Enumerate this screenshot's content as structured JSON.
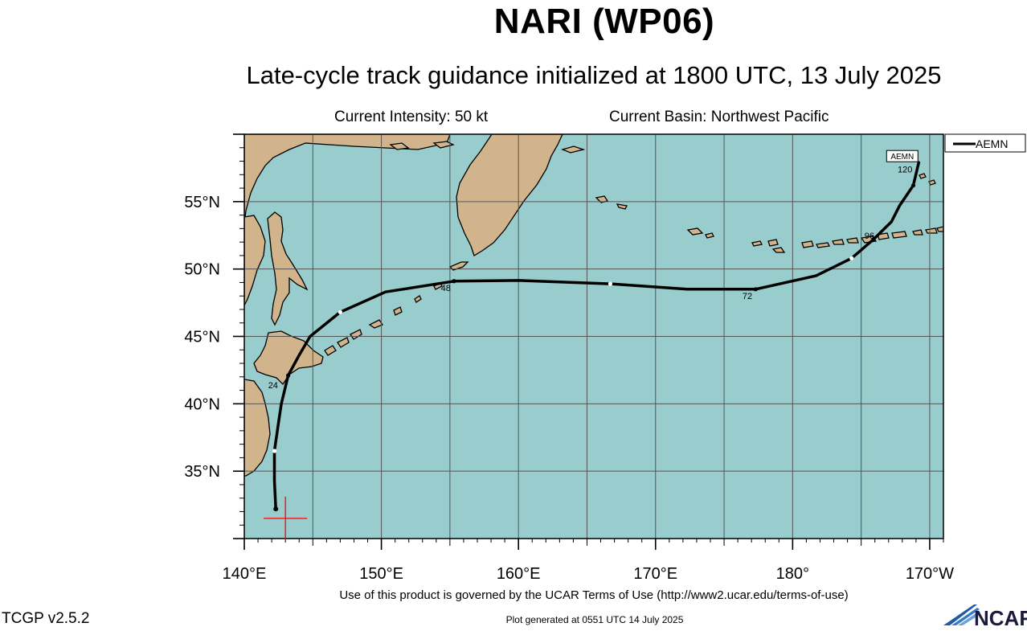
{
  "title": "NARI (WP06)",
  "subtitle": "Late-cycle track guidance initialized at 1800 UTC, 13 July 2025",
  "current_intensity": "Current Intensity: 50 kt",
  "current_basin": "Current Basin: Northwest Pacific",
  "terms": "Use of this product is governed by the UCAR Terms of Use (http://www2.ucar.edu/terms-of-use)",
  "generated": "Plot generated at 0551 UTC   14 July 2025",
  "version": "TCGP v2.5.2",
  "logo_text": "NCAR",
  "colors": {
    "ocean": "#99cccc",
    "land": "#d2b48c",
    "grid": "#555555",
    "track": "#000000",
    "marker": "#ff0000"
  },
  "chart_data": {
    "type": "map",
    "lon_range": [
      140,
      191
    ],
    "lat_range": [
      30,
      60
    ],
    "lon_ticks": [
      {
        "value": 140,
        "label": "140°E"
      },
      {
        "value": 150,
        "label": "150°E"
      },
      {
        "value": 160,
        "label": "160°E"
      },
      {
        "value": 170,
        "label": "170°E"
      },
      {
        "value": 180,
        "label": "180°"
      },
      {
        "value": 190,
        "label": "170°W"
      }
    ],
    "lat_ticks": [
      {
        "value": 35,
        "label": "35°N"
      },
      {
        "value": 40,
        "label": "40°N"
      },
      {
        "value": 45,
        "label": "45°N"
      },
      {
        "value": 50,
        "label": "50°N"
      },
      {
        "value": 55,
        "label": "55°N"
      }
    ],
    "grid": true,
    "legend": {
      "position": "top-right",
      "entries": [
        "AEMN"
      ]
    },
    "initial_position": {
      "lon": 143.0,
      "lat": 31.5
    },
    "series": [
      {
        "name": "AEMN",
        "track": [
          {
            "lon": 142.3,
            "lat": 32.2
          },
          {
            "lon": 142.2,
            "lat": 34.3
          },
          {
            "lon": 142.2,
            "lat": 36.5
          },
          {
            "lon": 142.5,
            "lat": 38.6
          },
          {
            "lon": 142.7,
            "lat": 40.0
          },
          {
            "lon": 143.2,
            "lat": 42.1
          },
          {
            "lon": 144.0,
            "lat": 43.6
          },
          {
            "lon": 144.8,
            "lat": 45.0
          },
          {
            "lon": 147.0,
            "lat": 46.8
          },
          {
            "lon": 150.3,
            "lat": 48.3
          },
          {
            "lon": 155.3,
            "lat": 49.1
          },
          {
            "lon": 160.0,
            "lat": 49.15
          },
          {
            "lon": 166.7,
            "lat": 48.9
          },
          {
            "lon": 172.3,
            "lat": 48.5
          },
          {
            "lon": 177.3,
            "lat": 48.5
          },
          {
            "lon": 181.7,
            "lat": 49.5
          },
          {
            "lon": 184.3,
            "lat": 50.8
          },
          {
            "lon": 185.9,
            "lat": 52.2
          },
          {
            "lon": 187.2,
            "lat": 53.5
          },
          {
            "lon": 187.8,
            "lat": 54.7
          },
          {
            "lon": 188.8,
            "lat": 56.2
          },
          {
            "lon": 189.2,
            "lat": 57.9
          }
        ],
        "dots": [
          {
            "lon": 142.2,
            "lat": 36.5
          },
          {
            "lon": 147.0,
            "lat": 46.8
          },
          {
            "lon": 166.7,
            "lat": 48.9
          },
          {
            "lon": 184.3,
            "lat": 50.8
          },
          {
            "lon": 188.8,
            "lat": 56.2
          }
        ],
        "labels": [
          {
            "text": "24",
            "lon": 143.2,
            "lat": 42.1,
            "dlon": -1.1,
            "dlat": -0.7
          },
          {
            "text": "48",
            "lon": 155.3,
            "lat": 49.1,
            "dlon": -0.6,
            "dlat": -0.5
          },
          {
            "text": "72",
            "lon": 177.3,
            "lat": 48.5,
            "dlon": -0.6,
            "dlat": -0.5
          },
          {
            "text": "96",
            "lon": 185.9,
            "lat": 52.2,
            "dlon": -0.3,
            "dlat": 0.3
          },
          {
            "text": "120",
            "lon": 188.8,
            "lat": 56.2,
            "dlon": -0.6,
            "dlat": 1.2
          }
        ],
        "end_label": "AEMN"
      }
    ]
  }
}
